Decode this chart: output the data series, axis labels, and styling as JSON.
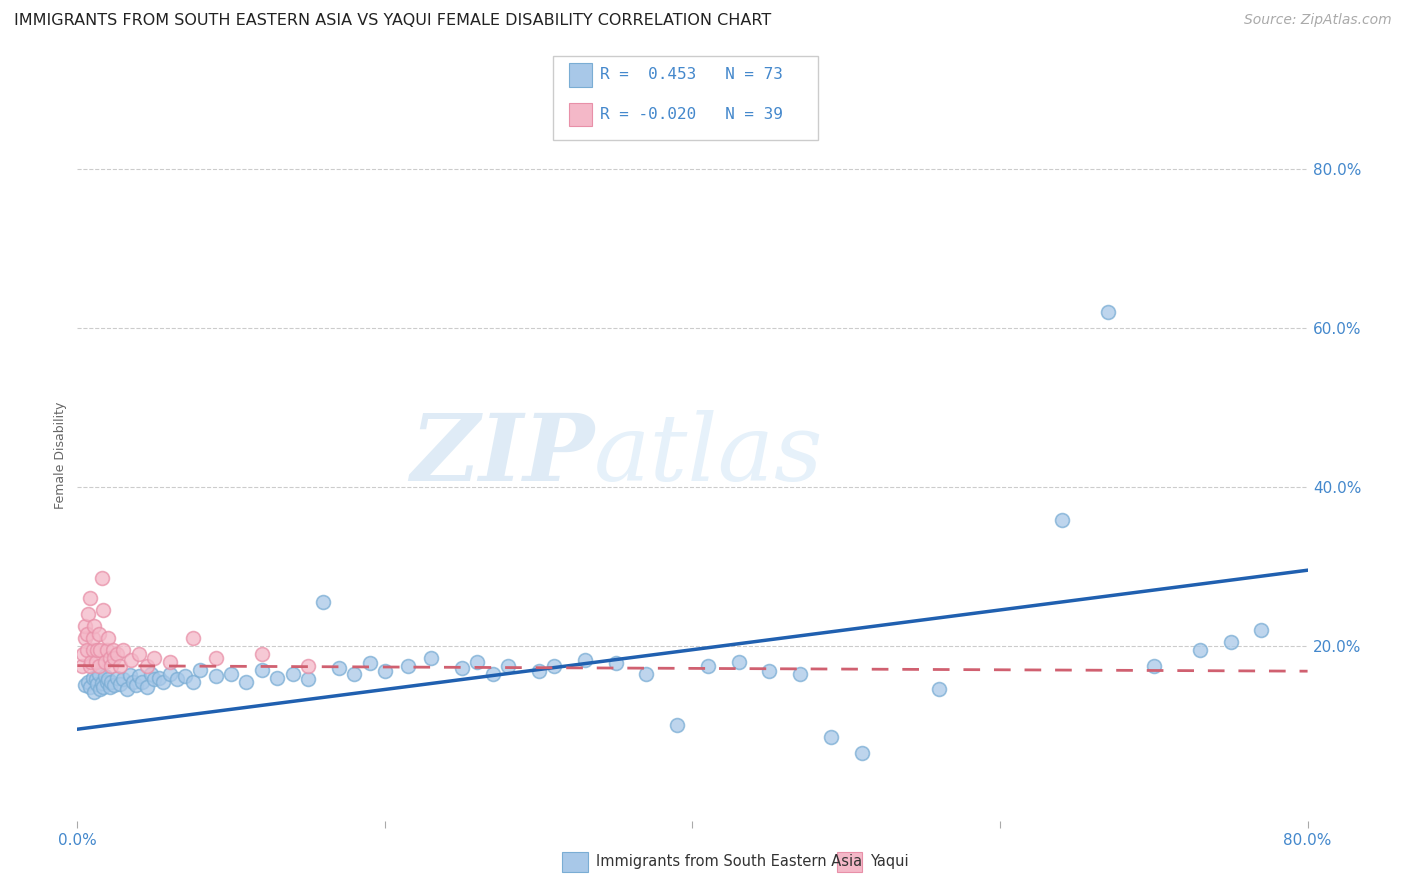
{
  "title": "IMMIGRANTS FROM SOUTH EASTERN ASIA VS YAQUI FEMALE DISABILITY CORRELATION CHART",
  "source": "Source: ZipAtlas.com",
  "ylabel": "Female Disability",
  "xlim": [
    0.0,
    0.8
  ],
  "ylim": [
    -0.02,
    0.9
  ],
  "blue_R": 0.453,
  "blue_N": 73,
  "pink_R": -0.02,
  "pink_N": 39,
  "blue_color": "#a8c8e8",
  "blue_edge_color": "#7aadd4",
  "pink_color": "#f4b8c8",
  "pink_edge_color": "#e890a8",
  "blue_line_color": "#2060b0",
  "pink_line_color": "#d06070",
  "watermark_color": "#d0e8f8",
  "grid_color": "#cccccc",
  "background_color": "#ffffff",
  "tick_color": "#4488cc",
  "title_fontsize": 11.5,
  "source_fontsize": 10,
  "tick_fontsize": 11,
  "ylabel_fontsize": 9,
  "blue_line_y0": 0.095,
  "blue_line_y1": 0.295,
  "pink_line_y0": 0.175,
  "pink_line_y1": 0.168,
  "blue_x": [
    0.005,
    0.007,
    0.008,
    0.01,
    0.011,
    0.012,
    0.013,
    0.014,
    0.015,
    0.016,
    0.017,
    0.018,
    0.019,
    0.02,
    0.021,
    0.022,
    0.024,
    0.026,
    0.028,
    0.03,
    0.032,
    0.034,
    0.036,
    0.038,
    0.04,
    0.042,
    0.045,
    0.048,
    0.05,
    0.053,
    0.056,
    0.06,
    0.065,
    0.07,
    0.075,
    0.08,
    0.09,
    0.1,
    0.11,
    0.12,
    0.13,
    0.14,
    0.15,
    0.16,
    0.17,
    0.18,
    0.19,
    0.2,
    0.215,
    0.23,
    0.25,
    0.26,
    0.27,
    0.28,
    0.3,
    0.31,
    0.33,
    0.35,
    0.37,
    0.39,
    0.41,
    0.43,
    0.45,
    0.47,
    0.49,
    0.51,
    0.56,
    0.64,
    0.67,
    0.7,
    0.73,
    0.75,
    0.77
  ],
  "blue_y": [
    0.15,
    0.155,
    0.148,
    0.16,
    0.142,
    0.158,
    0.152,
    0.165,
    0.145,
    0.153,
    0.148,
    0.162,
    0.155,
    0.158,
    0.148,
    0.155,
    0.15,
    0.16,
    0.152,
    0.158,
    0.145,
    0.163,
    0.155,
    0.15,
    0.162,
    0.155,
    0.148,
    0.165,
    0.158,
    0.16,
    0.155,
    0.165,
    0.158,
    0.162,
    0.155,
    0.17,
    0.162,
    0.165,
    0.155,
    0.17,
    0.16,
    0.165,
    0.158,
    0.255,
    0.172,
    0.165,
    0.178,
    0.168,
    0.175,
    0.185,
    0.172,
    0.18,
    0.165,
    0.175,
    0.168,
    0.175,
    0.182,
    0.178,
    0.165,
    0.1,
    0.175,
    0.18,
    0.168,
    0.165,
    0.085,
    0.065,
    0.145,
    0.358,
    0.62,
    0.175,
    0.195,
    0.205,
    0.22
  ],
  "pink_x": [
    0.003,
    0.004,
    0.005,
    0.005,
    0.006,
    0.006,
    0.007,
    0.008,
    0.008,
    0.009,
    0.01,
    0.01,
    0.011,
    0.012,
    0.013,
    0.014,
    0.014,
    0.015,
    0.016,
    0.017,
    0.018,
    0.019,
    0.02,
    0.021,
    0.022,
    0.023,
    0.024,
    0.026,
    0.028,
    0.03,
    0.035,
    0.04,
    0.045,
    0.05,
    0.06,
    0.075,
    0.09,
    0.12,
    0.15
  ],
  "pink_y": [
    0.175,
    0.19,
    0.21,
    0.225,
    0.195,
    0.215,
    0.24,
    0.26,
    0.175,
    0.18,
    0.195,
    0.21,
    0.225,
    0.18,
    0.195,
    0.215,
    0.175,
    0.195,
    0.285,
    0.245,
    0.18,
    0.195,
    0.21,
    0.185,
    0.175,
    0.195,
    0.185,
    0.19,
    0.175,
    0.195,
    0.182,
    0.19,
    0.175,
    0.185,
    0.18,
    0.21,
    0.185,
    0.19,
    0.175
  ]
}
